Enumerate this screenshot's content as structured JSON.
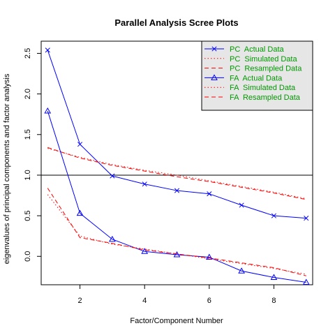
{
  "chart_data": {
    "type": "line",
    "title": "Parallel Analysis Scree Plots",
    "xlabel": "Factor/Component Number",
    "ylabel": "eigenvalues of principal components and factor analysis",
    "xlim": [
      0.8,
      9.2
    ],
    "ylim": [
      -0.35,
      2.65
    ],
    "x_ticks": [
      2,
      4,
      6,
      8
    ],
    "y_ticks": [
      0.0,
      0.5,
      1.0,
      1.5,
      2.0,
      2.5
    ],
    "y_tick_labels": [
      "0.0",
      "0.5",
      "1.0",
      "1.5",
      "2.0",
      "2.5"
    ],
    "grid": false,
    "reference_line": 1.0,
    "legend_position": "top-right",
    "x": [
      1,
      2,
      3,
      4,
      5,
      6,
      7,
      8,
      9
    ],
    "series": [
      {
        "name": "PC  Actual Data",
        "style": "solid",
        "marker": "x",
        "color": "#0000ff",
        "values": [
          2.54,
          1.38,
          0.99,
          0.89,
          0.81,
          0.77,
          0.63,
          0.5,
          0.47
        ]
      },
      {
        "name": "PC  Simulated Data",
        "style": "dotted",
        "marker": "none",
        "color": "#ff0000",
        "values": [
          1.33,
          1.22,
          1.13,
          1.06,
          1.0,
          0.93,
          0.86,
          0.79,
          0.71
        ]
      },
      {
        "name": "PC  Resampled Data",
        "style": "dashed",
        "marker": "none",
        "color": "#ff0000",
        "values": [
          1.34,
          1.21,
          1.12,
          1.05,
          0.98,
          0.92,
          0.85,
          0.78,
          0.7
        ]
      },
      {
        "name": "FA  Actual Data",
        "style": "solid",
        "marker": "triangle",
        "color": "#0000ff",
        "values": [
          1.79,
          0.53,
          0.21,
          0.06,
          0.02,
          -0.01,
          -0.18,
          -0.26,
          -0.32
        ]
      },
      {
        "name": "FA  Simulated Data",
        "style": "dotted",
        "marker": "none",
        "color": "#ff0000",
        "values": [
          0.76,
          0.25,
          0.15,
          0.09,
          0.03,
          -0.03,
          -0.09,
          -0.15,
          -0.22
        ]
      },
      {
        "name": "FA  Resampled Data",
        "style": "dashed",
        "marker": "none",
        "color": "#ff0000",
        "values": [
          0.84,
          0.23,
          0.16,
          0.08,
          0.03,
          -0.02,
          -0.08,
          -0.14,
          -0.24
        ]
      }
    ]
  }
}
